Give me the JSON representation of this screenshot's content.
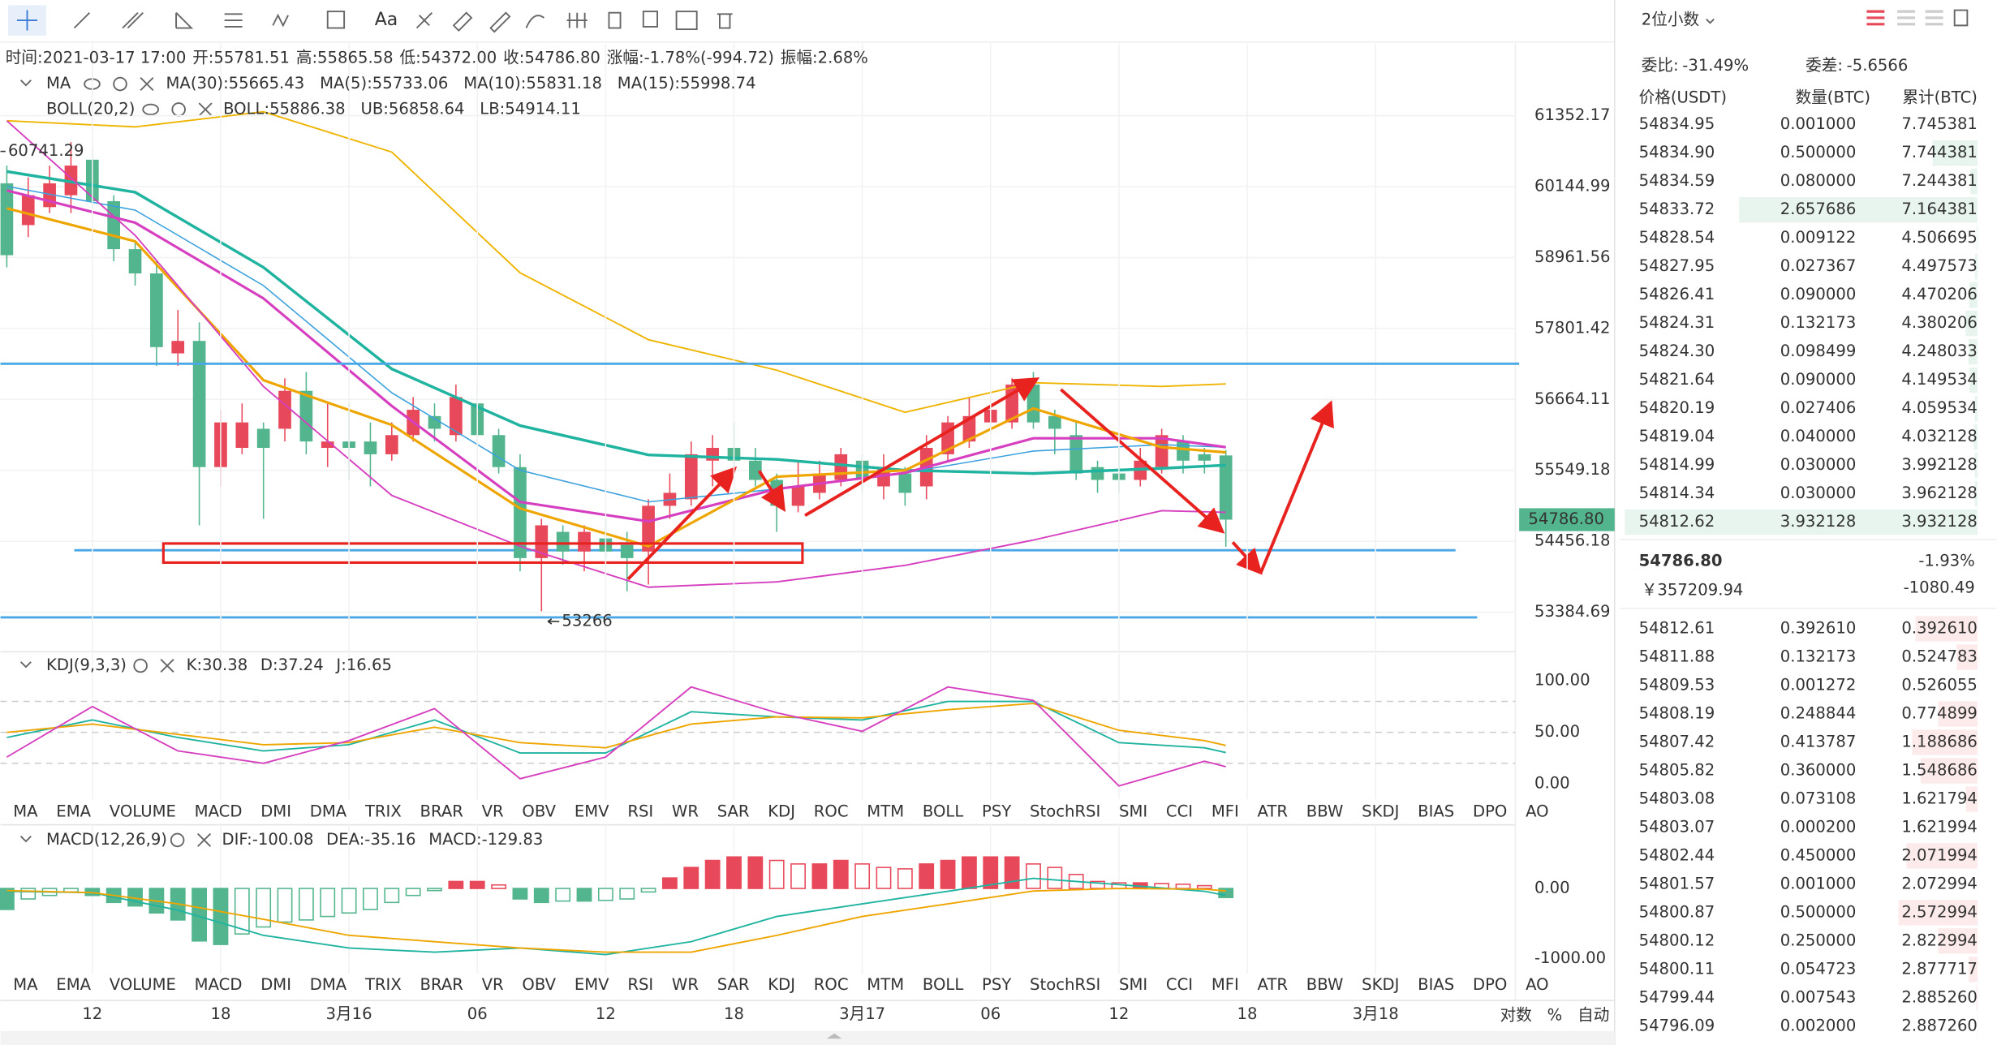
{
  "toolbar": {
    "text_tool": "Aa"
  },
  "header": {
    "items": [
      {
        "label": "时间:",
        "value": "2021-03-17 17:00"
      },
      {
        "label": "开:",
        "value": "55781.51"
      },
      {
        "label": "高:",
        "value": "55865.58"
      },
      {
        "label": "低:",
        "value": "54372.00"
      },
      {
        "label": "收:",
        "value": "54786.80"
      },
      {
        "label": "涨幅:",
        "value": "-1.78%(-994.72)"
      },
      {
        "label": "振幅:",
        "value": "2.68%"
      }
    ]
  },
  "main_chart": {
    "legend_ma": {
      "name": "MA",
      "items": [
        {
          "text": "MA(30):55665.43",
          "color": "#1fb3a0"
        },
        {
          "text": "MA(5):55733.06",
          "color": "#efa500"
        },
        {
          "text": "MA(10):55831.18",
          "color": "#d63fbf"
        },
        {
          "text": "MA(15):55998.74",
          "color": "#3aa0de"
        }
      ]
    },
    "legend_boll": {
      "name": "BOLL(20,2)",
      "items": [
        {
          "text": "BOLL:55886.38",
          "color": "#1fb3a0"
        },
        {
          "text": "UB:56858.64",
          "color": "#efa500"
        },
        {
          "text": "LB:54914.11",
          "color": "#d63fbf"
        }
      ]
    },
    "yscale": "log",
    "ylim": [
      52835,
      62520
    ],
    "yticks": [
      61352.17,
      60144.99,
      58961.56,
      57801.42,
      56664.11,
      55549.18,
      54456.18,
      53384.69
    ],
    "candles": {
      "up_color": "#e8495a",
      "down_color": "#52b58e",
      "open": [
        60200,
        59500,
        59800,
        60000,
        60600,
        59900,
        59100,
        58700,
        57400,
        57600,
        55600,
        55900,
        56200,
        56200,
        56800,
        55900,
        56000,
        56000,
        55800,
        56100,
        56400,
        56100,
        56600,
        56100,
        55600,
        54200,
        54600,
        54300,
        54500,
        54400,
        54300,
        55000,
        55100,
        55700,
        55900,
        55700,
        55400,
        55000,
        55200,
        55400,
        55700,
        55300,
        55500,
        55300,
        55800,
        56000,
        56300,
        56300,
        56900,
        56400,
        56100,
        55600,
        55500,
        55400,
        55600,
        56000,
        55800,
        55781.51
      ],
      "high": [
        60500,
        60300,
        60500,
        60900,
        60800,
        60000,
        59200,
        58900,
        58100,
        57900,
        56500,
        56600,
        56300,
        57000,
        57100,
        56600,
        56600,
        56300,
        56300,
        56700,
        56600,
        56900,
        56900,
        56200,
        55800,
        54800,
        54700,
        54700,
        54800,
        54600,
        55100,
        55500,
        56000,
        56100,
        56300,
        55900,
        55500,
        55700,
        55700,
        55900,
        55800,
        55800,
        55600,
        56100,
        56400,
        56700,
        56700,
        57000,
        57100,
        56500,
        56300,
        55700,
        55900,
        55900,
        56200,
        56100,
        55900,
        55865.58
      ],
      "low": [
        58800,
        59300,
        59700,
        59700,
        59800,
        58900,
        58500,
        57200,
        57200,
        54700,
        55300,
        55800,
        54800,
        56000,
        55800,
        55600,
        55400,
        55300,
        55700,
        56000,
        56000,
        56000,
        56000,
        55500,
        54000,
        53400,
        54100,
        54000,
        54200,
        53700,
        53800,
        54800,
        55000,
        55300,
        55600,
        55300,
        54600,
        54900,
        55100,
        55300,
        55200,
        55100,
        55000,
        55100,
        55700,
        55900,
        56100,
        56200,
        56200,
        55800,
        55400,
        55200,
        55200,
        55300,
        55500,
        55500,
        55500,
        54372
      ],
      "close": [
        59000,
        60000,
        60200,
        60500,
        59900,
        59100,
        58700,
        57500,
        57600,
        55600,
        56300,
        56300,
        55900,
        56800,
        56000,
        56000,
        55900,
        55800,
        56100,
        56500,
        56200,
        56700,
        56100,
        55600,
        54200,
        54700,
        54300,
        54600,
        54300,
        54200,
        55000,
        55200,
        55800,
        55900,
        55700,
        55400,
        55000,
        55300,
        55500,
        55800,
        55400,
        55600,
        55200,
        55900,
        56300,
        56400,
        56500,
        56900,
        56300,
        56200,
        55500,
        55400,
        55400,
        55700,
        56100,
        55700,
        55700,
        54786.8
      ]
    },
    "lines": {
      "x": [
        0,
        6,
        12,
        18,
        24,
        30,
        36,
        42,
        48,
        54,
        57
      ],
      "series": [
        {
          "color": "#1fb3a0",
          "width": 2.2,
          "values": [
            60400,
            60050,
            58800,
            57150,
            56250,
            55790,
            55720,
            55550,
            55500,
            55580,
            55630
          ]
        },
        {
          "color": "#3aa0de",
          "width": 1,
          "values": [
            60150,
            59750,
            58500,
            56770,
            55550,
            55060,
            55260,
            55510,
            55850,
            55950,
            55910
          ]
        },
        {
          "color": "#d63fbf",
          "width": 2,
          "values": [
            60080,
            59540,
            58290,
            56560,
            55060,
            54760,
            55260,
            55510,
            56050,
            56050,
            55910
          ]
        },
        {
          "color": "#efa500",
          "width": 2,
          "values": [
            59780,
            59230,
            56970,
            56260,
            54960,
            54380,
            55450,
            55550,
            56520,
            55910,
            55830
          ]
        },
        {
          "color": "#efb400",
          "width": 1.2,
          "values": [
            61265,
            61160,
            61420,
            60730,
            58710,
            57620,
            57130,
            56460,
            56930,
            56870,
            56910
          ]
        },
        {
          "color": "#d63fbf",
          "width": 1.2,
          "values": [
            61265,
            59330,
            56870,
            55160,
            54380,
            53760,
            53840,
            54090,
            54475,
            54925,
            54900
          ]
        }
      ]
    },
    "levels": [
      57233,
      54320,
      53307
    ],
    "level_color": "#4aa8e6",
    "max_label": "60741.29",
    "min_label": "53266",
    "price_tag": "54786.80"
  },
  "time_axis": {
    "ticks": [
      "12",
      "18",
      "3月16",
      "06",
      "12",
      "18",
      "3月17",
      "06",
      "12",
      "18",
      "3月18"
    ]
  },
  "tabs": {
    "items": [
      "MA",
      "EMA",
      "VOLUME",
      "MACD",
      "DMI",
      "DMA",
      "TRIX",
      "BRAR",
      "VR",
      "OBV",
      "EMV",
      "RSI",
      "WR",
      "SAR",
      "KDJ",
      "ROC",
      "MTM",
      "BOLL",
      "PSY",
      "StochRSI",
      "SMI",
      "CCI",
      "MFI",
      "ATR",
      "BBW",
      "SKDJ",
      "BIAS",
      "DPO",
      "AO"
    ],
    "row1_active": 14,
    "row1_used": 3,
    "row2_active": 3,
    "row2_used": 14
  },
  "kdj": {
    "title": "KDJ(9,3,3)",
    "items": [
      {
        "text": "K:30.38",
        "color": "#1fb3a0"
      },
      {
        "text": "D:37.24",
        "color": "#efa500"
      },
      {
        "text": "J:16.65",
        "color": "#d63fbf"
      }
    ],
    "ylim": [
      -15,
      127
    ],
    "yticks": [
      {
        "value": 100,
        "label": "100.00"
      },
      {
        "value": 50,
        "label": "50.00"
      },
      {
        "value": 0,
        "label": "0.00"
      }
    ],
    "ref_lines": [
      80,
      50,
      20
    ],
    "x": [
      0,
      4,
      8,
      12,
      16,
      20,
      24,
      28,
      32,
      36,
      40,
      44,
      48,
      52,
      56,
      57
    ],
    "series": [
      {
        "color": "#1fb3a0",
        "values": [
          45,
          62,
          45,
          32,
          38,
          62,
          30,
          30,
          70,
          65,
          62,
          80,
          80,
          40,
          35,
          30.38
        ]
      },
      {
        "color": "#efa500",
        "values": [
          50,
          58,
          48,
          38,
          40,
          55,
          40,
          35,
          58,
          65,
          64,
          72,
          78,
          52,
          42,
          37.24
        ]
      },
      {
        "color": "#d63fbf",
        "values": [
          26,
          75,
          32,
          20,
          42,
          73,
          5,
          26,
          94,
          69,
          51,
          94,
          81,
          -2,
          22,
          16.65
        ]
      }
    ]
  },
  "macd": {
    "title": "MACD(12,26,9)",
    "items": [
      {
        "text": "DIF:-100.08",
        "color": "#1fb3a0"
      },
      {
        "text": "DEA:-35.16",
        "color": "#efa500"
      },
      {
        "text": "MACD:-129.83",
        "color": "#d63fbf"
      }
    ],
    "ylim": [
      -1218,
      873
    ],
    "yticks": [
      {
        "value": 0,
        "label": "0.00"
      },
      {
        "value": -1000,
        "label": "-1000.00"
      }
    ],
    "histogram": [
      -300,
      -150,
      -100,
      -50,
      -100,
      -200,
      -250,
      -350,
      -450,
      -750,
      -800,
      -650,
      -550,
      -480,
      -450,
      -400,
      -350,
      -300,
      -200,
      -100,
      -30,
      100,
      100,
      50,
      -150,
      -200,
      -180,
      -180,
      -170,
      -150,
      -50,
      150,
      300,
      400,
      450,
      450,
      400,
      350,
      350,
      400,
      350,
      300,
      280,
      350,
      400,
      450,
      450,
      450,
      350,
      300,
      200,
      100,
      80,
      80,
      70,
      60,
      40,
      -129.83
    ],
    "x": [
      0,
      4,
      8,
      12,
      16,
      20,
      24,
      28,
      32,
      36,
      40,
      44,
      48,
      52,
      56,
      57
    ],
    "series": [
      {
        "color": "#1fb3a0",
        "values": [
          -40,
          -60,
          -310,
          -670,
          -850,
          -910,
          -850,
          -945,
          -760,
          -400,
          -220,
          -40,
          145,
          55,
          -40,
          -100.08
        ]
      },
      {
        "color": "#efa500",
        "values": [
          -30,
          -60,
          -220,
          -440,
          -670,
          -760,
          -850,
          -910,
          -910,
          -670,
          -400,
          -220,
          -36,
          0,
          -10,
          -35.16
        ]
      }
    ]
  },
  "axis_controls": [
    "对数",
    "%",
    "自动"
  ],
  "orderbook": {
    "precision": "2位小数",
    "ratio_label": "委比:",
    "ratio": "-31.49%",
    "diff_label": "委差:",
    "diff": "-5.6566",
    "columns": [
      "价格(USDT)",
      "数量(BTC)",
      "累计(BTC)"
    ],
    "asks": [
      [
        "54834.95",
        "0.001000",
        "7.745381"
      ],
      [
        "54834.90",
        "0.500000",
        "7.744381"
      ],
      [
        "54834.59",
        "0.080000",
        "7.244381"
      ],
      [
        "54833.72",
        "2.657686",
        "7.164381"
      ],
      [
        "54828.54",
        "0.009122",
        "4.506695"
      ],
      [
        "54827.95",
        "0.027367",
        "4.497573"
      ],
      [
        "54826.41",
        "0.090000",
        "4.470206"
      ],
      [
        "54824.31",
        "0.132173",
        "4.380206"
      ],
      [
        "54824.30",
        "0.098499",
        "4.248033"
      ],
      [
        "54821.64",
        "0.090000",
        "4.149534"
      ],
      [
        "54820.19",
        "0.027406",
        "4.059534"
      ],
      [
        "54819.04",
        "0.040000",
        "4.032128"
      ],
      [
        "54814.99",
        "0.030000",
        "3.992128"
      ],
      [
        "54814.34",
        "0.030000",
        "3.962128"
      ],
      [
        "54812.62",
        "3.932128",
        "3.932128"
      ]
    ],
    "last_price": "54786.80",
    "cny": "￥357209.94",
    "change_pct": "-1.93%",
    "change": "-1080.49",
    "bids": [
      [
        "54812.61",
        "0.392610",
        "0.392610"
      ],
      [
        "54811.88",
        "0.132173",
        "0.524783"
      ],
      [
        "54809.53",
        "0.001272",
        "0.526055"
      ],
      [
        "54808.19",
        "0.248844",
        "0.774899"
      ],
      [
        "54807.42",
        "0.413787",
        "1.188686"
      ],
      [
        "54805.82",
        "0.360000",
        "1.548686"
      ],
      [
        "54803.08",
        "0.073108",
        "1.621794"
      ],
      [
        "54803.07",
        "0.000200",
        "1.621994"
      ],
      [
        "54802.44",
        "0.450000",
        "2.071994"
      ],
      [
        "54801.57",
        "0.001000",
        "2.072994"
      ],
      [
        "54800.87",
        "0.500000",
        "2.572994"
      ],
      [
        "54800.12",
        "0.250000",
        "2.822994"
      ],
      [
        "54800.11",
        "0.054723",
        "2.877717"
      ],
      [
        "54799.44",
        "0.007543",
        "2.885260"
      ],
      [
        "54796.09",
        "0.002000",
        "2.887260"
      ]
    ]
  }
}
